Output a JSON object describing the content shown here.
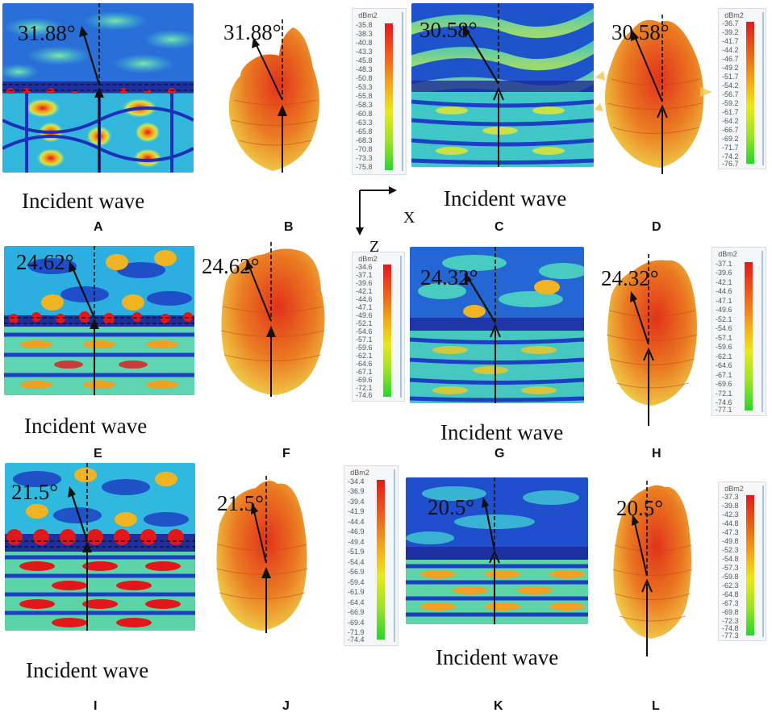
{
  "panel_letters": [
    "A",
    "B",
    "C",
    "D",
    "E",
    "F",
    "G",
    "H",
    "I",
    "J",
    "K",
    "L"
  ],
  "incident_label": "Incident wave",
  "angles": {
    "A": "31.88°",
    "B": "31.88°",
    "C": "30.58°",
    "D": "30.58°",
    "E": "24.62°",
    "F": "24.62°",
    "G": "24.32°",
    "H": "24.32°",
    "I": "21.5°",
    "J": "21.5°",
    "K": "20.5°",
    "L": "20.5°"
  },
  "axes": {
    "x_label": "X",
    "z_label": "Z"
  },
  "legends": [
    {
      "unit": "dBm2",
      "values": [
        "-35.8",
        "-38.3",
        "-40.8",
        "-43.3",
        "-45.8",
        "-48.3",
        "-50.8",
        "-53.3",
        "-55.8",
        "-58.3",
        "-60.8",
        "-63.3",
        "-65.8",
        "-68.3",
        "-70.8",
        "-73.3",
        "-75.8"
      ]
    },
    {
      "unit": "dBm2",
      "values": [
        "-36.7",
        "-39.2",
        "-41.7",
        "-44.2",
        "-46.7",
        "-49.2",
        "-51.7",
        "-54.2",
        "-56.7",
        "-59.2",
        "-61.7",
        "-64.2",
        "-66.7",
        "-69.2",
        "-71.7",
        "-74.2",
        "-76.7"
      ]
    },
    {
      "unit": "dBm2",
      "values": [
        "-34.6",
        "-37.1",
        "-39.6",
        "-42.1",
        "-44.6",
        "-47.1",
        "-49.6",
        "-52.1",
        "-54.6",
        "-57.1",
        "-59.6",
        "-62.1",
        "-64.6",
        "-67.1",
        "-69.6",
        "-72.1",
        "-74.6"
      ]
    },
    {
      "unit": "dBm2",
      "values": [
        "-37.1",
        "-39.6",
        "-42.1",
        "-44.6",
        "-47.1",
        "-49.6",
        "-52.1",
        "-54.6",
        "-57.1",
        "-59.6",
        "-62.1",
        "-64.6",
        "-67.1",
        "-69.6",
        "-72.1",
        "-74.6",
        "-77.1"
      ]
    },
    {
      "unit": "dBm2",
      "values": [
        "-34.4",
        "-36.9",
        "-39.4",
        "-41.9",
        "-44.4",
        "-46.9",
        "-49.4",
        "-51.9",
        "-54.4",
        "-56.9",
        "-59.4",
        "-61.9",
        "-64.4",
        "-66.9",
        "-69.4",
        "-71.9",
        "-74.4"
      ]
    },
    {
      "unit": "dBm2",
      "values": [
        "-37.3",
        "-39.8",
        "-42.3",
        "-44.8",
        "-47.3",
        "-49.8",
        "-52.3",
        "-54.8",
        "-57.3",
        "-59.8",
        "-62.3",
        "-64.8",
        "-67.3",
        "-69.8",
        "-72.3",
        "-74.8",
        "-77.3"
      ]
    }
  ],
  "colors": {
    "field_base": "#1e8fd6",
    "field_deep": "#1d3fc4",
    "field_mid": "#4fd8c8",
    "field_hot": "#e11d1d",
    "lobe": "#e0501c",
    "arrow": "#111111"
  }
}
